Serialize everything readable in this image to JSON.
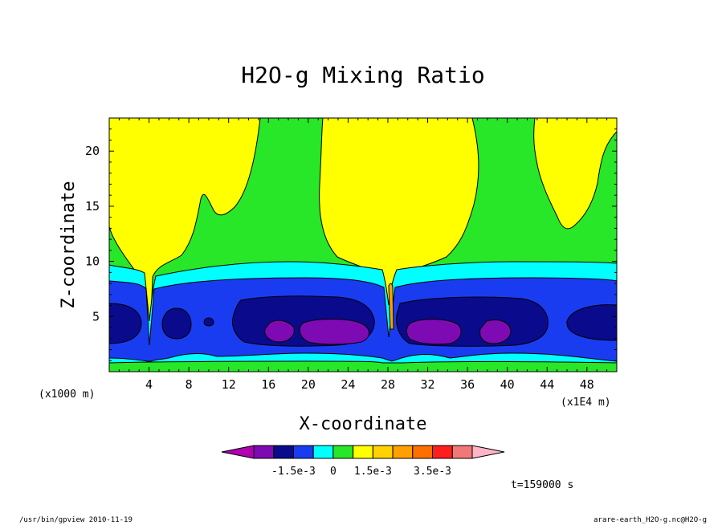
{
  "chart_data": {
    "type": "heatmap",
    "title": "H2O-g Mixing Ratio",
    "xlabel": "X-coordinate",
    "ylabel": "Z-coordinate",
    "x_unit": "(x1000 m)",
    "x_scale": "(x1E4 m)",
    "x_ticks": [
      4,
      8,
      12,
      16,
      20,
      24,
      28,
      32,
      36,
      40,
      44,
      48
    ],
    "y_ticks": [
      5,
      10,
      15,
      20
    ],
    "xlim": [
      0,
      51
    ],
    "ylim": [
      0,
      23
    ],
    "colorbar": {
      "colors": [
        "#b000b0",
        "#7e0ab4",
        "#0a0a8c",
        "#1a3cf0",
        "#00ffff",
        "#28e628",
        "#ffff00",
        "#ffd200",
        "#ffa000",
        "#ff6e00",
        "#ff1e1e",
        "#f07878",
        "#ffb4c8"
      ],
      "tick_labels": [
        "-1.5e-3",
        "0",
        "1.5e-3",
        "3.5e-3"
      ]
    },
    "annotation": "t=159000 s",
    "footer_left": "/usr/bin/gpview  2010-11-19",
    "footer_right": "arare-earth_H2O-g.nc@H2O-g"
  }
}
